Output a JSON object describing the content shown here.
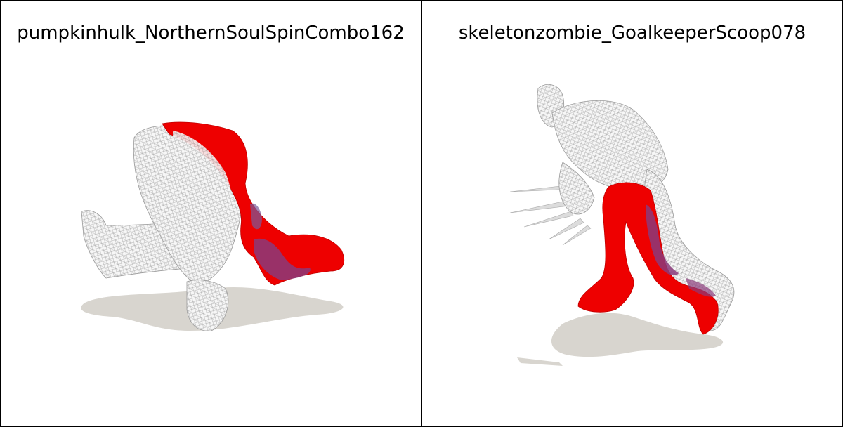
{
  "panels": [
    {
      "title": "pumpkinhulk_NorthernSoulSpinCombo162",
      "figure": "crouching-wireframe-figure-with-red-overlay"
    },
    {
      "title": "skeletonzombie_GoalkeeperScoop078",
      "figure": "running-wireframe-figure-with-red-overlay"
    }
  ],
  "colors": {
    "background": "#ffffff",
    "border": "#000000",
    "shadow": "#d8d5cf",
    "red_mesh": "#ee0000",
    "purple_patch": "#8a3a7a",
    "wire": "#b8b8b8"
  }
}
